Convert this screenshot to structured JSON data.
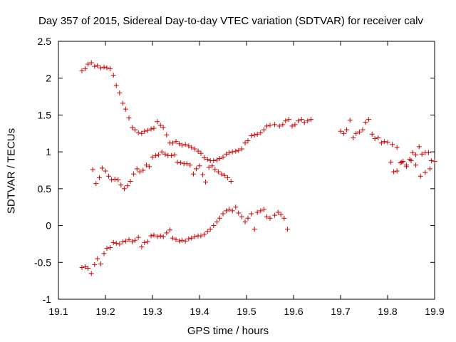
{
  "chart_data": {
    "type": "scatter",
    "title": "Day 357 of 2015, Sidereal Day-to-day VTEC variation (SDTVAR) for receiver calv",
    "xlabel": "GPS time / hours",
    "ylabel": "SDTVAR / TECUs",
    "xlim": [
      19.1,
      19.9
    ],
    "ylim": [
      -1,
      2.5
    ],
    "xticks": [
      "19.1",
      "19.2",
      "19.3",
      "19.4",
      "19.5",
      "19.6",
      "19.7",
      "19.8",
      "19.9"
    ],
    "yticks": [
      "-1",
      "-0.5",
      "0",
      "0.5",
      "1",
      "1.5",
      "2",
      "2.5"
    ],
    "grid": false,
    "marker": "+",
    "color": "#cc0000",
    "series": [
      {
        "x": [
          19.15,
          19.157,
          19.163,
          19.17,
          19.177,
          19.183,
          19.19,
          19.197,
          19.203,
          19.21,
          19.217,
          19.223,
          19.23,
          19.237,
          19.243,
          19.25,
          19.257,
          19.263,
          19.27,
          19.277,
          19.283,
          19.29,
          19.297,
          19.303,
          19.31,
          19.317,
          19.323,
          19.33,
          19.337,
          19.343,
          19.35,
          19.357,
          19.363,
          19.37,
          19.377,
          19.383,
          19.39,
          19.397,
          19.403,
          19.41,
          19.417,
          19.423,
          19.43,
          19.437,
          19.443,
          19.45,
          19.457,
          19.463,
          19.47,
          19.477,
          19.483,
          19.49,
          19.497,
          19.503,
          19.51,
          19.517,
          19.523,
          19.53,
          19.537,
          19.543,
          19.55,
          19.56,
          19.57,
          19.577,
          19.583,
          19.59,
          19.597,
          19.603,
          19.61,
          19.617,
          19.623,
          19.63,
          19.637
        ],
        "y": [
          2.1,
          2.13,
          2.19,
          2.21,
          2.16,
          2.17,
          2.14,
          2.15,
          2.14,
          2.13,
          2.04,
          1.9,
          1.8,
          1.66,
          1.58,
          1.46,
          1.33,
          1.3,
          1.26,
          1.25,
          1.28,
          1.29,
          1.31,
          1.32,
          1.41,
          1.36,
          1.33,
          1.23,
          1.12,
          1.12,
          1.14,
          1.11,
          1.09,
          1.1,
          1.08,
          1.06,
          1.04,
          1.01,
          0.98,
          0.92,
          0.9,
          0.88,
          0.88,
          0.89,
          0.91,
          0.93,
          0.97,
          0.99,
          1.0,
          1.01,
          1.02,
          1.04,
          1.12,
          1.15,
          1.22,
          1.23,
          1.24,
          1.26,
          1.3,
          1.35,
          1.36,
          1.37,
          1.35,
          1.37,
          1.42,
          1.44,
          1.35,
          1.37,
          1.42,
          1.44,
          1.4,
          1.42,
          1.44
        ]
      },
      {
        "x": [
          19.173,
          19.18,
          19.187,
          19.193,
          19.2,
          19.207,
          19.213,
          19.22,
          19.227,
          19.233,
          19.24,
          19.247,
          19.253,
          19.26,
          19.267,
          19.273,
          19.28,
          19.287,
          19.293,
          19.3,
          19.307,
          19.313,
          19.32,
          19.327,
          19.333,
          19.34,
          19.347,
          19.353,
          19.36,
          19.367,
          19.373,
          19.38,
          19.387,
          19.393,
          19.4,
          19.407,
          19.413,
          19.42,
          19.427,
          19.433,
          19.44,
          19.447,
          19.453,
          19.46,
          19.467
        ],
        "y": [
          0.76,
          0.57,
          0.65,
          0.78,
          0.74,
          0.67,
          0.62,
          0.63,
          0.62,
          0.55,
          0.5,
          0.54,
          0.6,
          0.7,
          0.77,
          0.73,
          0.75,
          0.82,
          0.8,
          0.93,
          0.95,
          0.96,
          1.0,
          0.97,
          0.95,
          0.95,
          0.96,
          0.86,
          0.85,
          0.84,
          0.84,
          0.82,
          0.7,
          0.77,
          0.81,
          0.69,
          0.59,
          0.79,
          0.81,
          0.76,
          0.73,
          0.7,
          0.68,
          0.65,
          0.6
        ]
      },
      {
        "x": [
          19.15,
          19.157,
          19.163,
          19.17,
          19.177,
          19.183,
          19.19,
          19.197,
          19.203,
          19.21,
          19.217,
          19.223,
          19.23,
          19.237,
          19.243,
          19.25,
          19.257,
          19.263,
          19.27,
          19.277,
          19.283,
          19.29,
          19.297,
          19.303,
          19.31,
          19.317,
          19.323,
          19.33,
          19.337,
          19.343,
          19.35,
          19.357,
          19.363,
          19.37,
          19.377,
          19.383,
          19.39,
          19.397,
          19.403,
          19.41,
          19.417,
          19.423,
          19.43,
          19.437,
          19.443,
          19.45,
          19.457,
          19.463,
          19.47,
          19.477,
          19.483,
          19.49,
          19.497,
          19.503,
          19.51,
          19.517,
          19.523,
          19.53,
          19.537,
          19.543,
          19.55,
          19.56,
          19.567,
          19.573,
          19.58,
          19.587
        ],
        "y": [
          -0.57,
          -0.56,
          -0.58,
          -0.65,
          -0.53,
          -0.45,
          -0.52,
          -0.38,
          -0.31,
          -0.3,
          -0.23,
          -0.24,
          -0.25,
          -0.22,
          -0.21,
          -0.19,
          -0.22,
          -0.2,
          -0.16,
          -0.29,
          -0.23,
          -0.22,
          -0.14,
          -0.13,
          -0.15,
          -0.14,
          -0.15,
          -0.1,
          -0.06,
          -0.17,
          -0.19,
          -0.21,
          -0.2,
          -0.21,
          -0.18,
          -0.17,
          -0.15,
          -0.14,
          -0.14,
          -0.12,
          -0.08,
          -0.05,
          0.0,
          0.05,
          0.1,
          0.16,
          0.2,
          0.22,
          0.2,
          0.25,
          0.17,
          0.12,
          0.05,
          0.1,
          0.16,
          -0.05,
          0.18,
          0.2,
          0.22,
          0.12,
          0.1,
          0.14,
          0.18,
          0.15,
          0.1,
          -0.05
        ]
      },
      {
        "x": [
          19.7,
          19.707,
          19.713,
          19.72,
          19.727,
          19.733,
          19.74,
          19.747,
          19.753,
          19.76,
          19.767,
          19.773,
          19.78,
          19.787,
          19.793,
          19.8,
          19.807,
          19.813,
          19.82,
          19.827,
          19.833,
          19.84,
          19.847,
          19.853,
          19.86,
          19.867,
          19.873,
          19.88,
          19.887,
          19.893,
          19.9
        ],
        "y": [
          1.28,
          1.25,
          1.3,
          1.43,
          1.19,
          1.25,
          1.27,
          1.3,
          1.4,
          1.44,
          1.24,
          1.18,
          1.19,
          1.12,
          1.14,
          1.13,
          0.86,
          0.73,
          0.74,
          0.85,
          0.87,
          0.8,
          0.9,
          0.99,
          0.96,
          1.07,
          0.97,
          0.99,
          0.99,
          0.88,
          0.87
        ]
      },
      {
        "x": [
          19.81,
          19.82,
          19.83,
          19.84,
          19.85,
          19.86,
          19.87,
          19.88,
          19.89
        ],
        "y": [
          1.1,
          1.06,
          0.86,
          0.82,
          0.88,
          0.82,
          0.67,
          0.72,
          0.77
        ]
      }
    ]
  }
}
